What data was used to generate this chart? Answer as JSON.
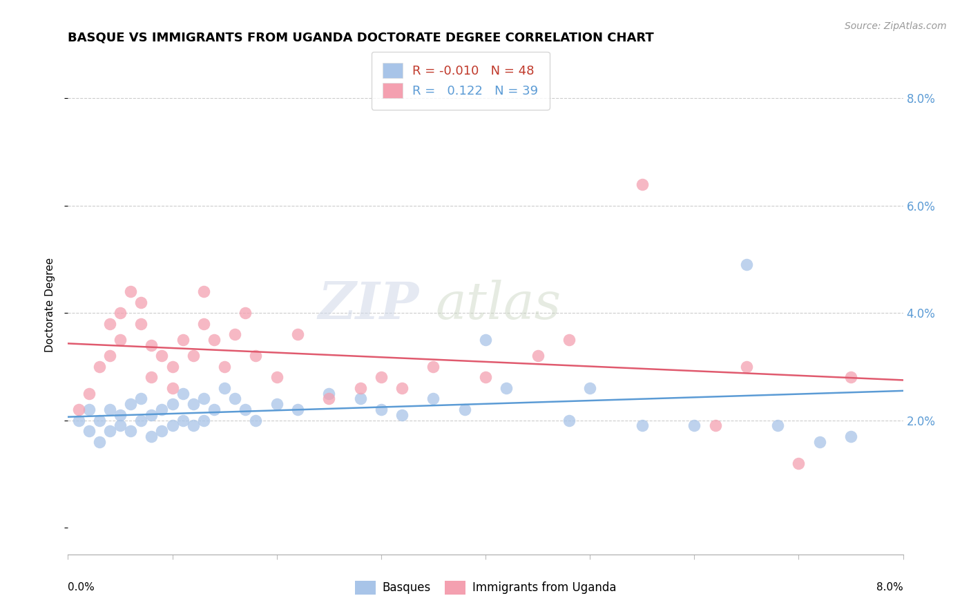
{
  "title": "BASQUE VS IMMIGRANTS FROM UGANDA DOCTORATE DEGREE CORRELATION CHART",
  "source": "Source: ZipAtlas.com",
  "ylabel": "Doctorate Degree",
  "ylabel_right_ticks": [
    "2.0%",
    "4.0%",
    "6.0%",
    "8.0%"
  ],
  "ylabel_right_vals": [
    0.02,
    0.04,
    0.06,
    0.08
  ],
  "legend_label1": "Basques",
  "legend_label2": "Immigrants from Uganda",
  "R1": "-0.010",
  "N1": "48",
  "R2": "0.122",
  "N2": "39",
  "xmin": 0.0,
  "xmax": 0.08,
  "ymin": -0.005,
  "ymax": 0.088,
  "color_blue": "#a8c4e8",
  "color_pink": "#f4a0b0",
  "color_blue_line": "#5b9bd5",
  "color_pink_line": "#e05a6e",
  "basques_x": [
    0.001,
    0.002,
    0.002,
    0.003,
    0.003,
    0.004,
    0.004,
    0.005,
    0.005,
    0.006,
    0.006,
    0.007,
    0.007,
    0.008,
    0.008,
    0.009,
    0.009,
    0.01,
    0.01,
    0.011,
    0.011,
    0.012,
    0.012,
    0.013,
    0.013,
    0.014,
    0.015,
    0.016,
    0.017,
    0.018,
    0.02,
    0.022,
    0.025,
    0.028,
    0.03,
    0.032,
    0.035,
    0.038,
    0.04,
    0.042,
    0.048,
    0.05,
    0.055,
    0.06,
    0.065,
    0.068,
    0.072,
    0.075
  ],
  "basques_y": [
    0.02,
    0.018,
    0.022,
    0.016,
    0.02,
    0.018,
    0.022,
    0.019,
    0.021,
    0.018,
    0.023,
    0.02,
    0.024,
    0.017,
    0.021,
    0.018,
    0.022,
    0.019,
    0.023,
    0.02,
    0.025,
    0.019,
    0.023,
    0.02,
    0.024,
    0.022,
    0.026,
    0.024,
    0.022,
    0.02,
    0.023,
    0.022,
    0.025,
    0.024,
    0.022,
    0.021,
    0.024,
    0.022,
    0.035,
    0.026,
    0.02,
    0.026,
    0.019,
    0.019,
    0.049,
    0.019,
    0.016,
    0.017
  ],
  "uganda_x": [
    0.001,
    0.002,
    0.003,
    0.004,
    0.004,
    0.005,
    0.005,
    0.006,
    0.007,
    0.007,
    0.008,
    0.008,
    0.009,
    0.01,
    0.01,
    0.011,
    0.012,
    0.013,
    0.013,
    0.014,
    0.015,
    0.016,
    0.017,
    0.018,
    0.02,
    0.022,
    0.025,
    0.028,
    0.03,
    0.032,
    0.035,
    0.04,
    0.045,
    0.048,
    0.055,
    0.062,
    0.065,
    0.07,
    0.075
  ],
  "uganda_y": [
    0.022,
    0.025,
    0.03,
    0.032,
    0.038,
    0.035,
    0.04,
    0.044,
    0.042,
    0.038,
    0.028,
    0.034,
    0.032,
    0.03,
    0.026,
    0.035,
    0.032,
    0.044,
    0.038,
    0.035,
    0.03,
    0.036,
    0.04,
    0.032,
    0.028,
    0.036,
    0.024,
    0.026,
    0.028,
    0.026,
    0.03,
    0.028,
    0.032,
    0.035,
    0.064,
    0.019,
    0.03,
    0.012,
    0.028
  ]
}
